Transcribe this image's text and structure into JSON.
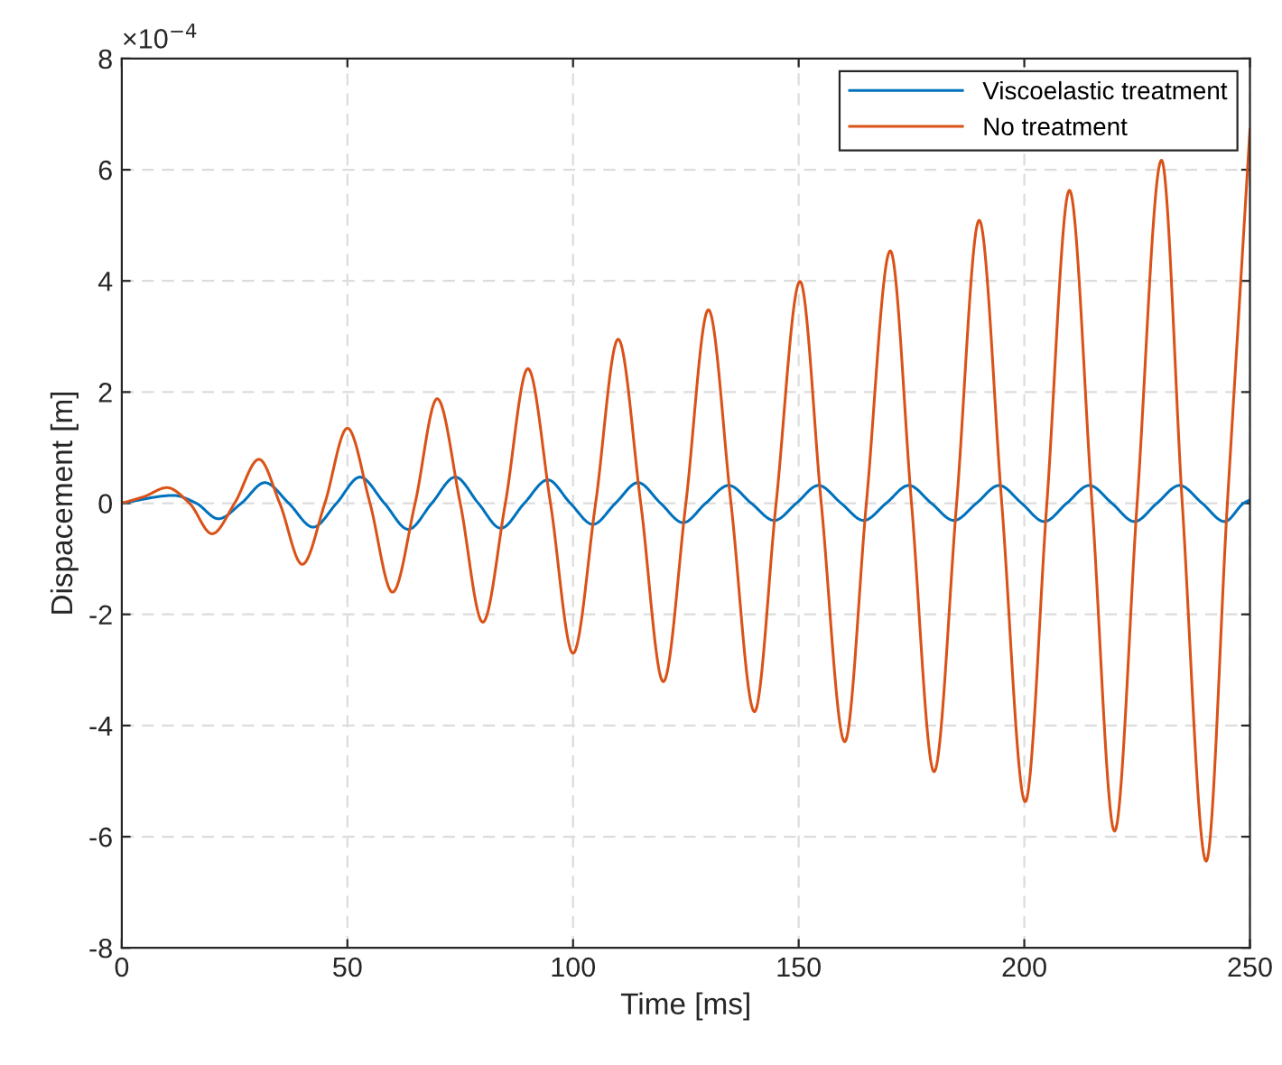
{
  "chart_data": {
    "type": "line",
    "xlabel": "Time [ms]",
    "ylabel": "Dispacement [m]",
    "annotations": [
      "×10$^{−4}$"
    ],
    "xlim": [
      0,
      250
    ],
    "xticks": [
      0,
      50,
      100,
      150,
      200,
      250
    ],
    "ylim": [
      -8,
      8
    ],
    "yticks": [
      -8,
      -6,
      -4,
      -2,
      0,
      2,
      4,
      6,
      8
    ],
    "grid": true,
    "legend": "top right",
    "line_style": "solid",
    "marker": "none",
    "series": [
      {
        "name": "Viscoelastic treatment",
        "color": "#0072bd",
        "x": [
          0,
          11.5,
          16.5,
          21.4,
          26.5,
          31.7,
          37,
          42.4,
          47.6,
          52.8,
          58.2,
          63.5,
          68.7,
          73.9,
          79,
          84,
          89.2,
          94.4,
          99.4,
          104.4,
          109.4,
          114.4,
          119.4,
          124.4,
          129.4,
          134.5,
          139.5,
          144.6,
          149.5,
          154.4,
          159.4,
          164.4,
          169.4,
          174.4,
          179.4,
          184.4,
          189.4,
          194.4,
          199.4,
          204.4,
          209.4,
          214.4,
          219.4,
          224.4,
          229.4,
          234.4,
          239.4,
          244.4,
          248.6,
          250
        ],
        "values": [
          0,
          0.14,
          0,
          -0.28,
          0,
          0.37,
          0,
          -0.43,
          0,
          0.47,
          0,
          -0.47,
          0,
          0.47,
          0,
          -0.45,
          0,
          0.42,
          0,
          -0.38,
          0,
          0.37,
          0,
          -0.35,
          0,
          0.32,
          0,
          -0.31,
          0,
          0.32,
          0,
          -0.31,
          0,
          0.32,
          0,
          -0.31,
          0,
          0.32,
          0,
          -0.33,
          0,
          0.32,
          0,
          -0.33,
          0,
          0.32,
          0,
          -0.33,
          0,
          0.06
        ]
      },
      {
        "name": "No treatment",
        "color": "#d95319",
        "x": [
          0,
          5,
          10,
          15,
          20,
          25,
          30.4,
          35,
          40,
          45,
          50,
          55,
          60,
          65,
          69.9,
          75,
          80,
          85,
          90,
          95,
          100,
          105,
          110,
          115,
          120,
          125,
          130,
          135,
          140.2,
          145,
          150.3,
          155,
          160.2,
          165,
          170.3,
          175,
          180,
          185,
          190,
          195,
          200.2,
          205,
          210,
          215,
          220,
          225,
          230.4,
          235,
          240.3,
          245,
          250
        ],
        "values": [
          0,
          0.12,
          0.28,
          0,
          -0.55,
          0,
          0.79,
          0,
          -1.1,
          0,
          1.35,
          0,
          -1.6,
          0,
          1.88,
          0,
          -2.14,
          0,
          2.42,
          0,
          -2.7,
          0,
          2.95,
          0,
          -3.21,
          0,
          3.48,
          0,
          -3.75,
          0,
          3.99,
          0,
          -4.29,
          0,
          4.54,
          0,
          -4.83,
          0,
          5.09,
          0,
          -5.37,
          0,
          5.63,
          0,
          -5.9,
          0,
          6.17,
          0,
          -6.44,
          0,
          6.73
        ]
      }
    ]
  }
}
